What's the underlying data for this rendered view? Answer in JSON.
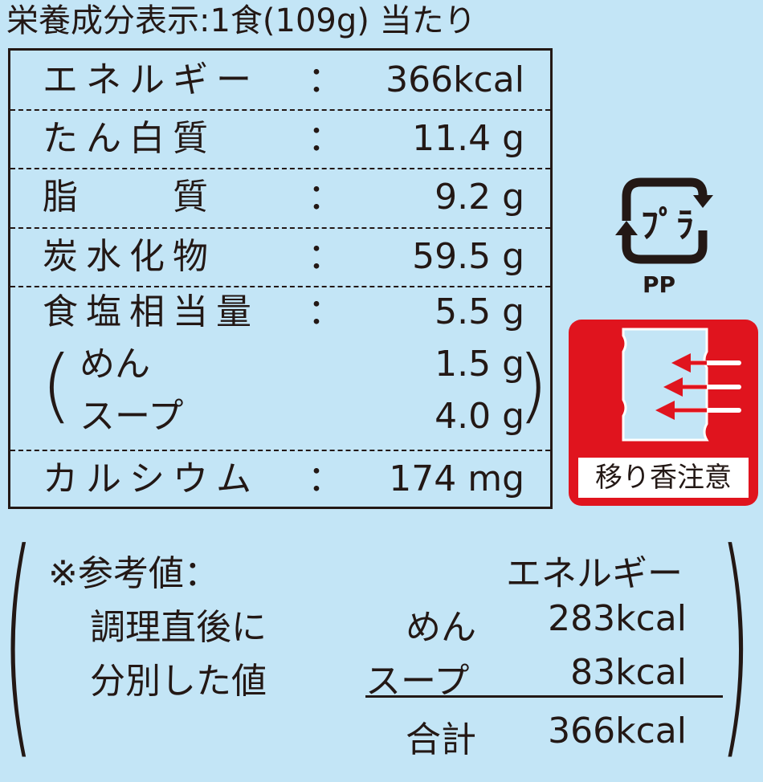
{
  "title": "栄養成分表示:1食(109g) 当たり",
  "rows": [
    {
      "label": "エネルギー",
      "value": "366kcal"
    },
    {
      "label": "たん白質",
      "value": "11.4 g"
    },
    {
      "label": "脂　　質",
      "value": "9.2 g"
    },
    {
      "label": "炭水化物",
      "value": "59.5 g"
    },
    {
      "label": "食塩相当量",
      "value": "5.5 g"
    },
    {
      "label": "めん",
      "value": "1.5 g"
    },
    {
      "label": "スープ",
      "value": "4.0 g"
    },
    {
      "label": "カルシウム",
      "value": "174 mg"
    }
  ],
  "colon": "：",
  "icons": {
    "recycle": "pla-recycle-icon",
    "recycle_label": "PP",
    "warning": "aroma-transfer-warning-icon",
    "warning_label": "移り香注意",
    "warning_color": "#e0141e"
  },
  "reference": {
    "note_lines": [
      "※参考値：",
      "調理直後に",
      "分別した値"
    ],
    "header": "エネルギー",
    "items": [
      {
        "label": "めん",
        "value": "283kcal"
      },
      {
        "label": "スープ",
        "value": "83kcal"
      }
    ],
    "total_label": "合計",
    "total_value": "366kcal"
  }
}
